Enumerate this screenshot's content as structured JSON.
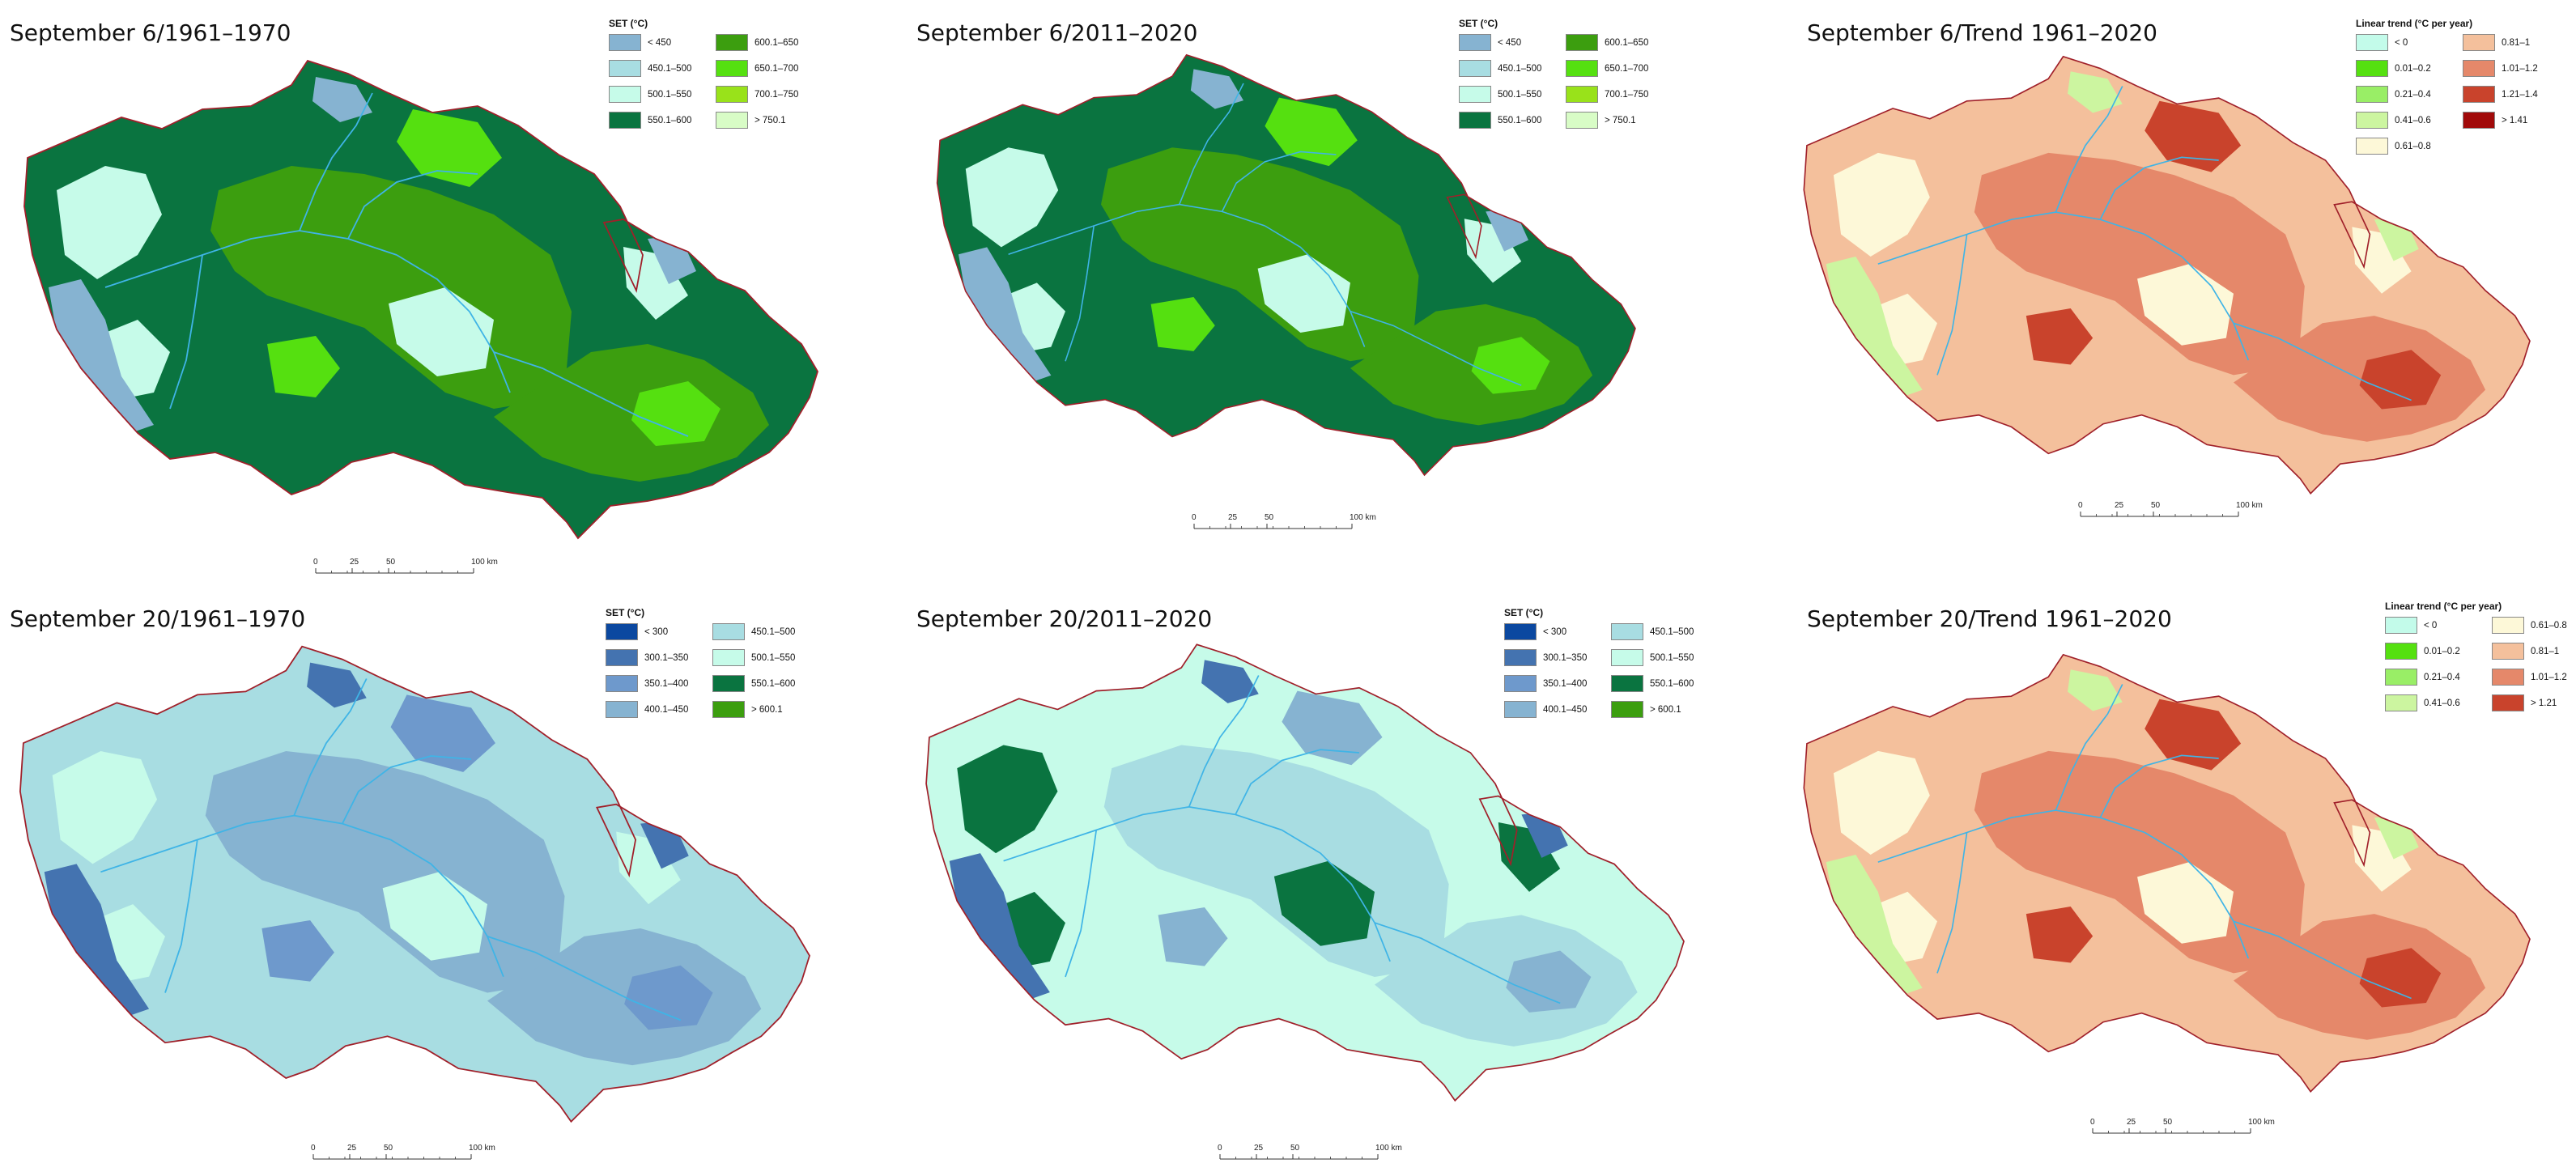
{
  "panels": [
    {
      "title": "September 6/1961–1970",
      "legend_title": "SET (°C)",
      "legend": [
        {
          "label": "< 450",
          "color": "#86b3d1"
        },
        {
          "label": "600.1–650",
          "color": "#3c9e0f"
        },
        {
          "label": "450.1–500",
          "color": "#a8dde2"
        },
        {
          "label": "650.1–700",
          "color": "#55e010"
        },
        {
          "label": "500.1–550",
          "color": "#c6fbe9"
        },
        {
          "label": "700.1–750",
          "color": "#99e21a"
        },
        {
          "label": "550.1–600",
          "color": "#0a7440"
        },
        {
          "label": "> 750.1",
          "color": "#d8fcc6"
        }
      ],
      "colors": {
        "base": "#0a7440",
        "blob1": "#3c9e0f",
        "blob2": "#c6fbe9",
        "blob3": "#55e010",
        "blob4": "#86b3d1"
      }
    },
    {
      "title": "September 6/2011–2020",
      "legend_title": "SET (°C)",
      "legend": [
        {
          "label": "< 450",
          "color": "#86b3d1"
        },
        {
          "label": "600.1–650",
          "color": "#3c9e0f"
        },
        {
          "label": "450.1–500",
          "color": "#a8dde2"
        },
        {
          "label": "650.1–700",
          "color": "#55e010"
        },
        {
          "label": "500.1–550",
          "color": "#c6fbe9"
        },
        {
          "label": "700.1–750",
          "color": "#99e21a"
        },
        {
          "label": "550.1–600",
          "color": "#0a7440"
        },
        {
          "label": "> 750.1",
          "color": "#d8fcc6"
        }
      ],
      "colors": {
        "base": "#0a7440",
        "blob1": "#3c9e0f",
        "blob2": "#c6fbe9",
        "blob3": "#55e010",
        "blob4": "#86b3d1"
      }
    },
    {
      "title": "September 6/Trend 1961–2020",
      "legend_title": "Linear trend (°C per year)",
      "legend": [
        {
          "label": "< 0",
          "color": "#c3fbea"
        },
        {
          "label": "0.81–1",
          "color": "#f4c09c"
        },
        {
          "label": "0.01–0.2",
          "color": "#55e010"
        },
        {
          "label": "1.01–1.2",
          "color": "#e5886a"
        },
        {
          "label": "0.21–0.4",
          "color": "#99ee66"
        },
        {
          "label": "1.21–1.4",
          "color": "#c9432c"
        },
        {
          "label": "0.41–0.6",
          "color": "#ccf5a0"
        },
        {
          "label": "> 1.41",
          "color": "#a10a0a"
        },
        {
          "label": "0.61–0.8",
          "color": "#fdf8d8"
        }
      ],
      "colors": {
        "base": "#f4c09c",
        "blob1": "#e5886a",
        "blob2": "#fdf8d8",
        "blob3": "#c9432c",
        "blob4": "#ccf5a0"
      }
    },
    {
      "title": "September 20/1961–1970",
      "legend_title": "SET (°C)",
      "legend": [
        {
          "label": "< 300",
          "color": "#0b48a0"
        },
        {
          "label": "450.1–500",
          "color": "#a8dde2"
        },
        {
          "label": "300.1–350",
          "color": "#4473b0"
        },
        {
          "label": "500.1–550",
          "color": "#c6fbe9"
        },
        {
          "label": "350.1–400",
          "color": "#6e99cc"
        },
        {
          "label": "550.1–600",
          "color": "#0a7440"
        },
        {
          "label": "400.1–450",
          "color": "#86b3d1"
        },
        {
          "label": "> 600.1",
          "color": "#3c9e0f"
        }
      ],
      "colors": {
        "base": "#a8dde2",
        "blob1": "#86b3d1",
        "blob2": "#c6fbe9",
        "blob3": "#6e99cc",
        "blob4": "#4473b0"
      }
    },
    {
      "title": "September 20/2011–2020",
      "legend_title": "SET (°C)",
      "legend": [
        {
          "label": "< 300",
          "color": "#0b48a0"
        },
        {
          "label": "450.1–500",
          "color": "#a8dde2"
        },
        {
          "label": "300.1–350",
          "color": "#4473b0"
        },
        {
          "label": "500.1–550",
          "color": "#c6fbe9"
        },
        {
          "label": "350.1–400",
          "color": "#6e99cc"
        },
        {
          "label": "550.1–600",
          "color": "#0a7440"
        },
        {
          "label": "400.1–450",
          "color": "#86b3d1"
        },
        {
          "label": "> 600.1",
          "color": "#3c9e0f"
        }
      ],
      "colors": {
        "base": "#c6fbe9",
        "blob1": "#a8dde2",
        "blob2": "#0a7440",
        "blob3": "#86b3d1",
        "blob4": "#4473b0"
      }
    },
    {
      "title": "September 20/Trend 1961–2020",
      "legend_title": "Linear trend (°C per year)",
      "legend": [
        {
          "label": "< 0",
          "color": "#c3fbea"
        },
        {
          "label": "0.61–0.8",
          "color": "#fdf8d8"
        },
        {
          "label": "0.01–0.2",
          "color": "#55e010"
        },
        {
          "label": "0.81–1",
          "color": "#f4c09c"
        },
        {
          "label": "0.21–0.4",
          "color": "#99ee66"
        },
        {
          "label": "1.01–1.2",
          "color": "#e5886a"
        },
        {
          "label": "0.41–0.6",
          "color": "#ccf5a0"
        },
        {
          "label": "> 1.21",
          "color": "#c9432c"
        }
      ],
      "colors": {
        "base": "#f4c09c",
        "blob1": "#e5886a",
        "blob2": "#fdf8d8",
        "blob3": "#c9432c",
        "blob4": "#ccf5a0"
      }
    }
  ],
  "scale_bar": {
    "ticks": [
      "0",
      "25",
      "50",
      "100 km"
    ]
  },
  "map_style": {
    "border_color": "#a0202a",
    "river_color": "#3fb4e6"
  }
}
